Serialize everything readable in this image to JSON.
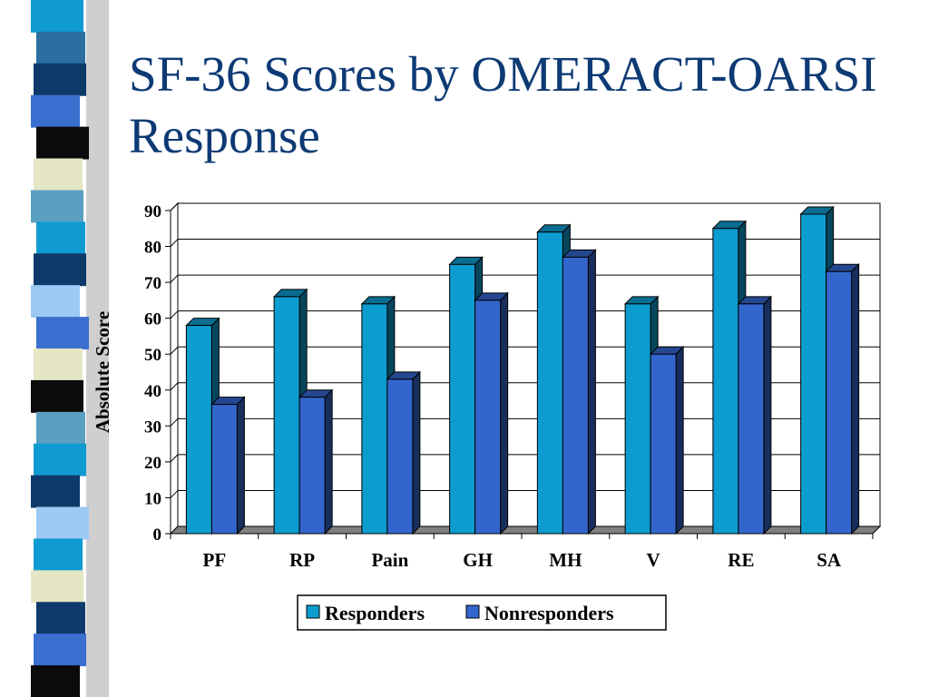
{
  "title": "SF-36 Scores by OMERACT-OARSI Response",
  "colors": {
    "title": "#0d3a74",
    "responders": "#0d9ccf",
    "nonresponders": "#3366cc"
  },
  "decor_stripe_colors": [
    "#0f9bd2",
    "#2a6fa0",
    "#0d3a6a",
    "#3a6fd0",
    "#0b0b0b",
    "#e5e6c4",
    "#5aa0c0",
    "#0f9bd2",
    "#0d3a6a",
    "#9ccaf5",
    "#3a6fd0",
    "#e5e6c4",
    "#0b0b0b",
    "#5aa0c0",
    "#0f9bd2",
    "#0d3a6a",
    "#9ccaf5",
    "#0f9bd2",
    "#e5e6c4",
    "#0d3a6a",
    "#3a6fd0",
    "#0b0b0b"
  ],
  "chart_data": {
    "type": "bar",
    "ylabel": "Absolute Score",
    "xlabel": "",
    "ylim": [
      0,
      90
    ],
    "yticks": [
      0,
      10,
      20,
      30,
      40,
      50,
      60,
      70,
      80,
      90
    ],
    "grid": true,
    "legend_position": "bottom",
    "categories": [
      "PF",
      "RP",
      "Pain",
      "GH",
      "MH",
      "V",
      "RE",
      "SA"
    ],
    "series": [
      {
        "name": "Responders",
        "color": "#0d9ccf",
        "values": [
          58,
          66,
          64,
          75,
          84,
          64,
          85,
          89
        ]
      },
      {
        "name": "Nonresponders",
        "color": "#3366cc",
        "values": [
          36,
          38,
          43,
          65,
          77,
          50,
          64,
          73
        ]
      }
    ]
  }
}
